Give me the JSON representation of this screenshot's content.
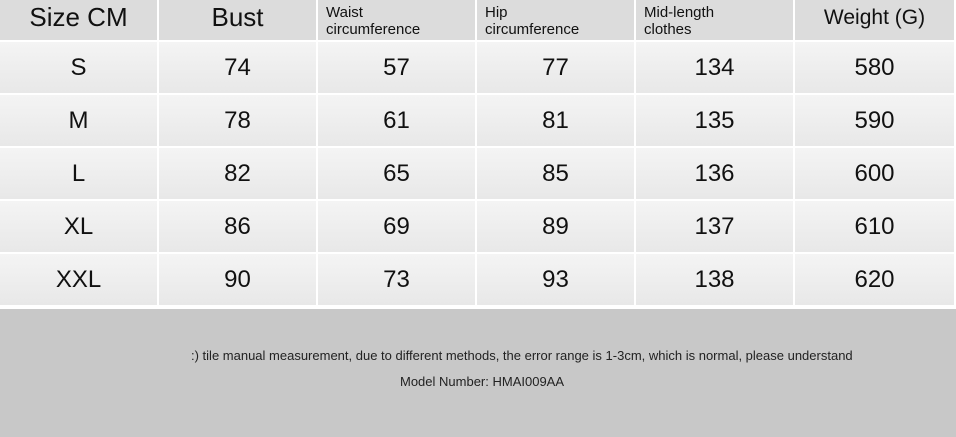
{
  "table": {
    "header": [
      "Size CM",
      "Bust",
      "Waist circumference",
      "Hip circumference",
      "Mid-length clothes",
      "Weight (G)"
    ],
    "rows": [
      [
        "S",
        74,
        57,
        77,
        134,
        580
      ],
      [
        "M",
        78,
        61,
        81,
        135,
        590
      ],
      [
        "L",
        82,
        65,
        85,
        136,
        600
      ],
      [
        "XL",
        86,
        69,
        89,
        137,
        610
      ],
      [
        "XXL",
        90,
        73,
        93,
        138,
        620
      ]
    ]
  },
  "footer": {
    "note": ":) tile manual measurement, due to different methods, the error range is 1-3cm, which is normal, please understand",
    "model": "Model Number: HMAI009AA"
  }
}
